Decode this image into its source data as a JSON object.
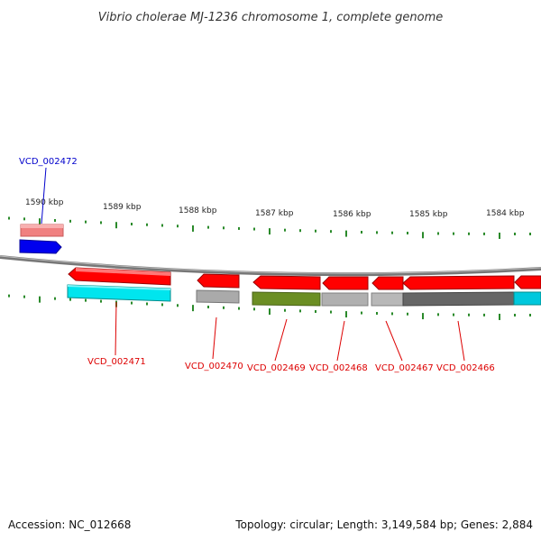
{
  "title": "Vibrio cholerae MJ-1236 chromosome 1, complete genome",
  "footer": {
    "accession": "Accession: NC_012668",
    "summary": "Topology: circular; Length: 3,149,584 bp; Genes: 2,884"
  },
  "ruler": {
    "ticks": [
      "1590 kbp",
      "1589 kbp",
      "1588 kbp",
      "1587 kbp",
      "1586 kbp",
      "1585 kbp",
      "1584 kbp"
    ]
  },
  "colors": {
    "forward_gene": "#ff0000",
    "reverse_gene_upper": "#ff0000",
    "highlight_blue": "#0000ee",
    "light_red": "#f08080",
    "cyan": "#00e5ee",
    "gray": "#aaaaaa",
    "dark_gray": "#666666",
    "olive": "#6b8e23",
    "tick_green": "#2a8a2a",
    "backbone": "#888888",
    "label_blue": "#0000cc",
    "label_red": "#dd0000"
  },
  "genes": {
    "vcd_002472": "VCD_002472",
    "vcd_002471": "VCD_002471",
    "vcd_002470": "VCD_002470",
    "vcd_002469": "VCD_002469",
    "vcd_002468": "VCD_002468",
    "vcd_002467": "VCD_002467",
    "vcd_002466": "VCD_002466"
  }
}
